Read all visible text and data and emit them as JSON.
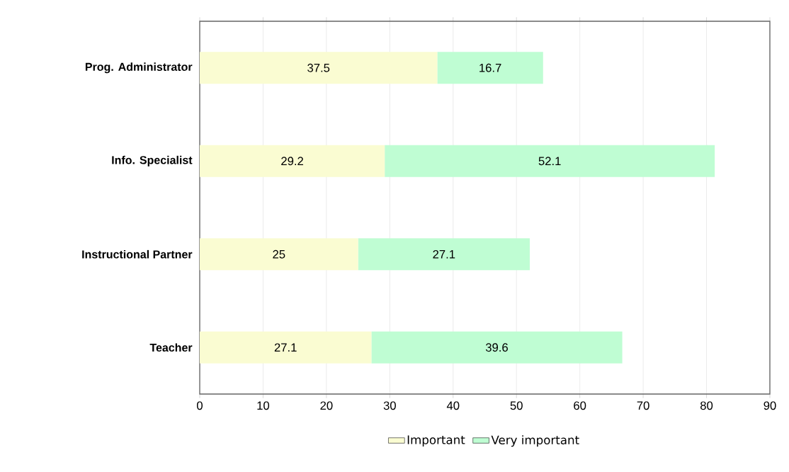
{
  "chart_data": {
    "type": "bar",
    "orientation": "horizontal",
    "stacked": true,
    "categories": [
      "Prog. Administrator",
      "Info. Specialist",
      "Instructional Partner",
      "Teacher"
    ],
    "series": [
      {
        "name": "Important",
        "color": "#fafcd2",
        "values": [
          37.5,
          29.2,
          25,
          27.1
        ]
      },
      {
        "name": "Very important",
        "color": "#bffdd3",
        "values": [
          16.7,
          52.1,
          27.1,
          39.6
        ]
      }
    ],
    "xlim": [
      0,
      90
    ],
    "xticks": [
      0,
      10,
      20,
      30,
      40,
      50,
      60,
      70,
      80,
      90
    ],
    "grid": "x",
    "legend": "bottom",
    "data_labels": true
  }
}
